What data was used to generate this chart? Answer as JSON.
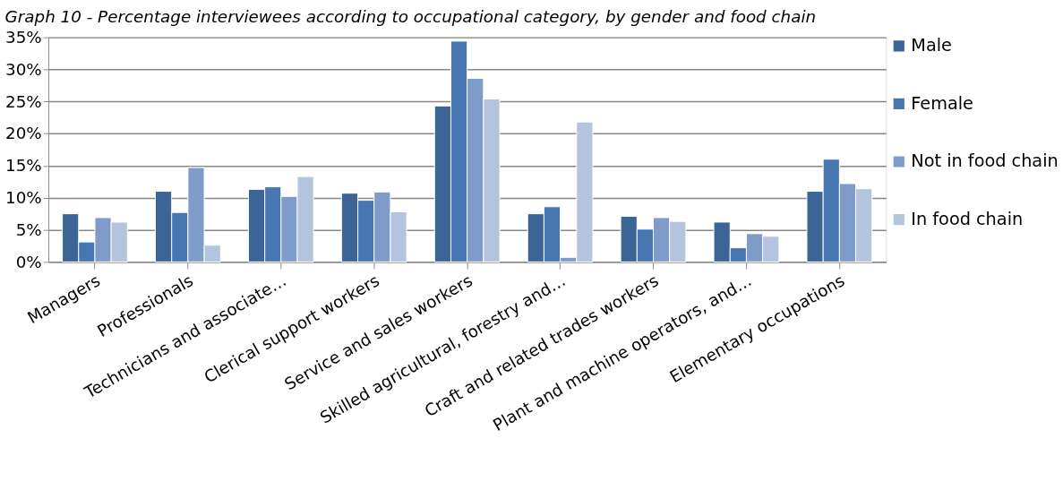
{
  "chart_data": {
    "type": "bar",
    "title": "Graph 10 - Percentage interviewees according to occupational category, by gender and food chain",
    "categories": [
      "Managers",
      "Professionals",
      "Technicians and associate…",
      "Clerical support workers",
      "Service and sales workers",
      "Skilled agricultural, forestry and…",
      "Craft and related trades workers",
      "Plant and machine operators, and…",
      "Elementary occupations"
    ],
    "series": [
      {
        "name": "Male",
        "color": "#3c6496",
        "values": [
          7.5,
          11.0,
          11.3,
          10.7,
          24.3,
          7.5,
          7.1,
          6.2,
          11.0
        ]
      },
      {
        "name": "Female",
        "color": "#4876b0",
        "values": [
          3.1,
          7.7,
          11.7,
          9.6,
          34.4,
          8.6,
          5.1,
          2.2,
          16.0
        ]
      },
      {
        "name": "Not in food chain",
        "color": "#7f9cc8",
        "values": [
          6.9,
          14.7,
          10.2,
          10.9,
          28.6,
          0.7,
          6.9,
          4.4,
          12.2
        ]
      },
      {
        "name": "In food chain",
        "color": "#b4c4de",
        "values": [
          6.2,
          2.6,
          13.3,
          7.8,
          25.4,
          21.8,
          6.3,
          4.0,
          11.4
        ]
      }
    ],
    "ylim": [
      0,
      35
    ],
    "yticks": [
      {
        "value": 0,
        "label": "0%"
      },
      {
        "value": 5,
        "label": "5%"
      },
      {
        "value": 10,
        "label": "10%"
      },
      {
        "value": 15,
        "label": "15%"
      },
      {
        "value": 20,
        "label": "20%"
      },
      {
        "value": 25,
        "label": "25%"
      },
      {
        "value": 30,
        "label": "30%"
      },
      {
        "value": 35,
        "label": "35%"
      }
    ],
    "grid": "y",
    "legend": "right"
  }
}
